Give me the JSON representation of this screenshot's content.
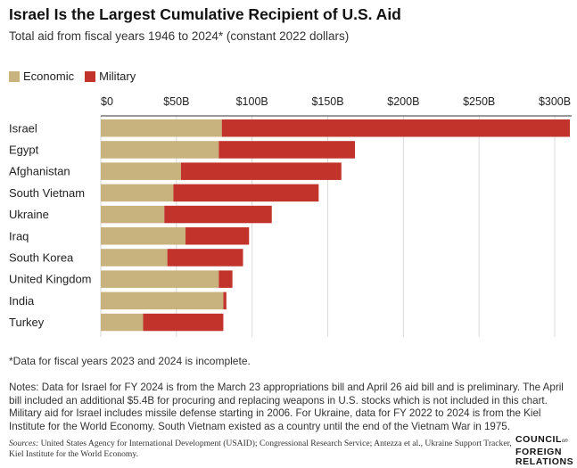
{
  "header": {
    "title": "Israel Is the Largest Cumulative Recipient of U.S. Aid",
    "subtitle": "Total aid from fiscal years 1946 to 2024* (constant 2022 dollars)"
  },
  "colors": {
    "economic": "#c8b27d",
    "military": "#c1332b",
    "gridline": "#d9d9d9",
    "axis": "#333333"
  },
  "chart_data": {
    "type": "bar",
    "orientation": "horizontal",
    "stacked": true,
    "categories": [
      "Israel",
      "Egypt",
      "Afghanistan",
      "South Vietnam",
      "Ukraine",
      "Iraq",
      "South Korea",
      "United Kingdom",
      "India",
      "Turkey"
    ],
    "series": [
      {
        "name": "Economic",
        "values": [
          80,
          78,
          53,
          48,
          42,
          56,
          44,
          78,
          81,
          28
        ]
      },
      {
        "name": "Military",
        "values": [
          230,
          90,
          106,
          96,
          71,
          42,
          50,
          9,
          2,
          53
        ]
      }
    ],
    "x_ticks": [
      "$0",
      "$50B",
      "$100B",
      "$150B",
      "$200B",
      "$250B",
      "$300B"
    ],
    "x_tick_values": [
      0,
      50,
      100,
      150,
      200,
      250,
      300
    ],
    "xlim": [
      0,
      310
    ],
    "axis_position": "top",
    "grid": true,
    "legend": "top-left"
  },
  "footnote": "*Data for fiscal years 2023 and 2024 is incomplete.",
  "notes": "Notes: Data for Israel for FY 2024 is from the March 23 appropriations bill and April 26 aid bill and is preliminary. The April bill included an additional $5.4B for procuring and replacing weapons in U.S. stocks which is not included in this chart. Military aid for Israel includes missile defense starting in 2006. For Ukraine, data for FY 2022 to 2024 is from the Kiel Institute for the World Economy. South Vietnam existed as a country until the end of the Vietnam War in 1975.",
  "sources": {
    "label": "Sources:",
    "text": " United States Agency for International Development (USAID); Congressional Research Service; Antezza et al., Ukraine Support Tracker, Kiel Institute for the World Economy."
  },
  "logo": {
    "line1": "COUNCIL",
    "on": "on",
    "line2": "FOREIGN",
    "line3": "RELATIONS"
  }
}
